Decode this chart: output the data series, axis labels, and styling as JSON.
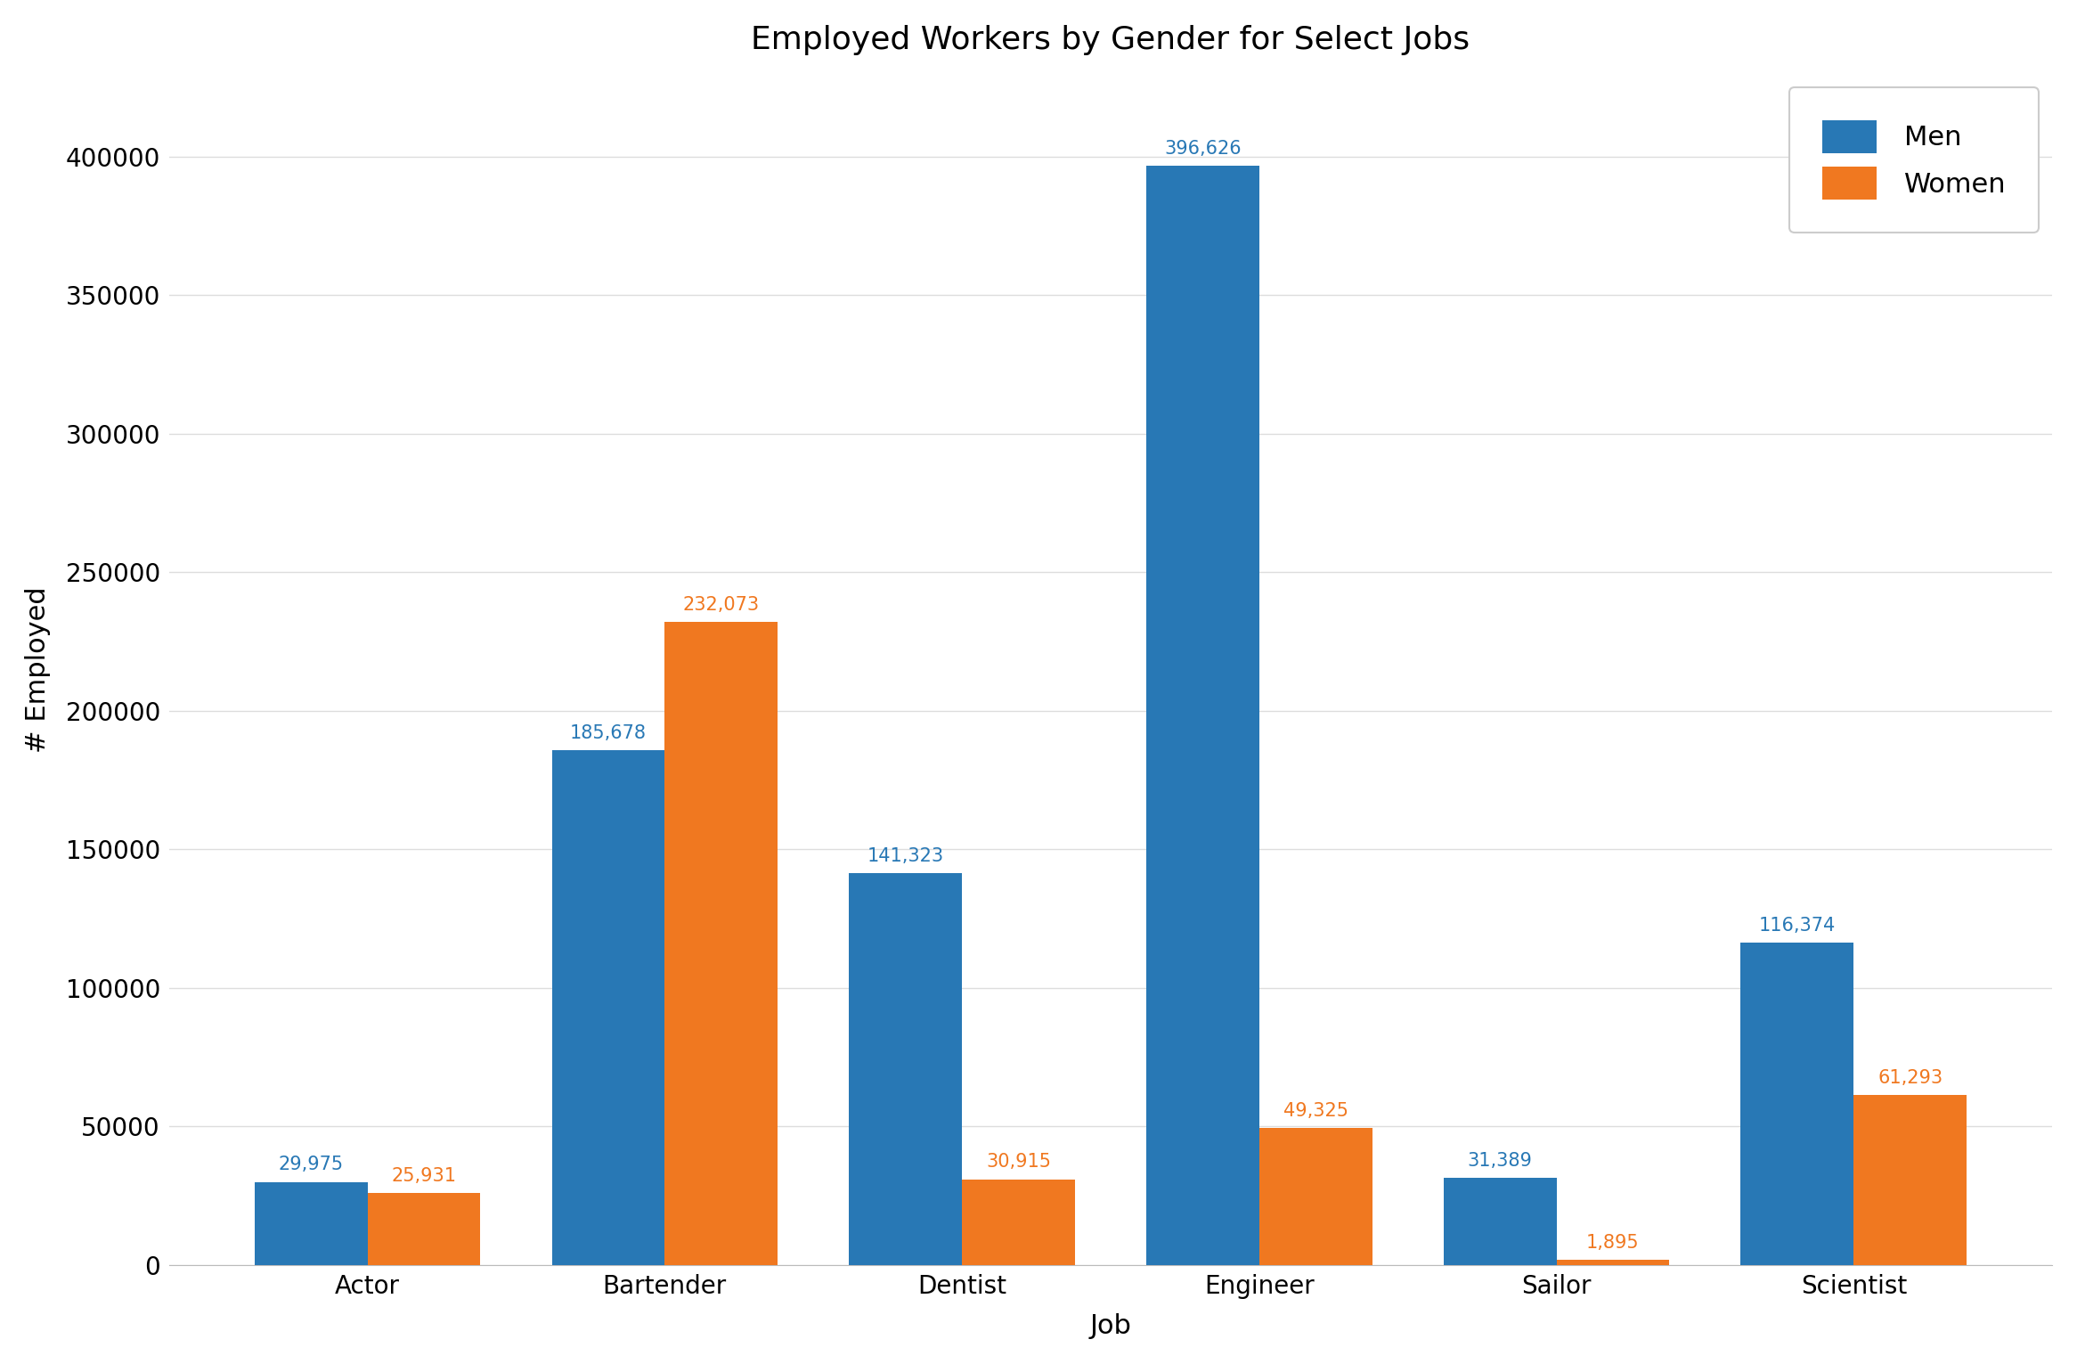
{
  "title": "Employed Workers by Gender for Select Jobs",
  "xlabel": "Job",
  "ylabel": "# Employed",
  "categories": [
    "Actor",
    "Bartender",
    "Dentist",
    "Engineer",
    "Sailor",
    "Scientist"
  ],
  "men_values": [
    29975,
    185678,
    141323,
    396626,
    31389,
    116374
  ],
  "women_values": [
    25931,
    232073,
    30915,
    49325,
    1895,
    61293
  ],
  "men_color": "#2878b5",
  "women_color": "#f07820",
  "bar_width": 0.38,
  "ylim": [
    0,
    430000
  ],
  "yticks": [
    0,
    50000,
    100000,
    150000,
    200000,
    250000,
    300000,
    350000,
    400000
  ],
  "title_fontsize": 26,
  "label_fontsize": 22,
  "tick_fontsize": 20,
  "legend_fontsize": 22,
  "annotation_fontsize": 15,
  "background_color": "#ffffff",
  "grid_color": "#dddddd",
  "legend_edge_color": "#cccccc"
}
